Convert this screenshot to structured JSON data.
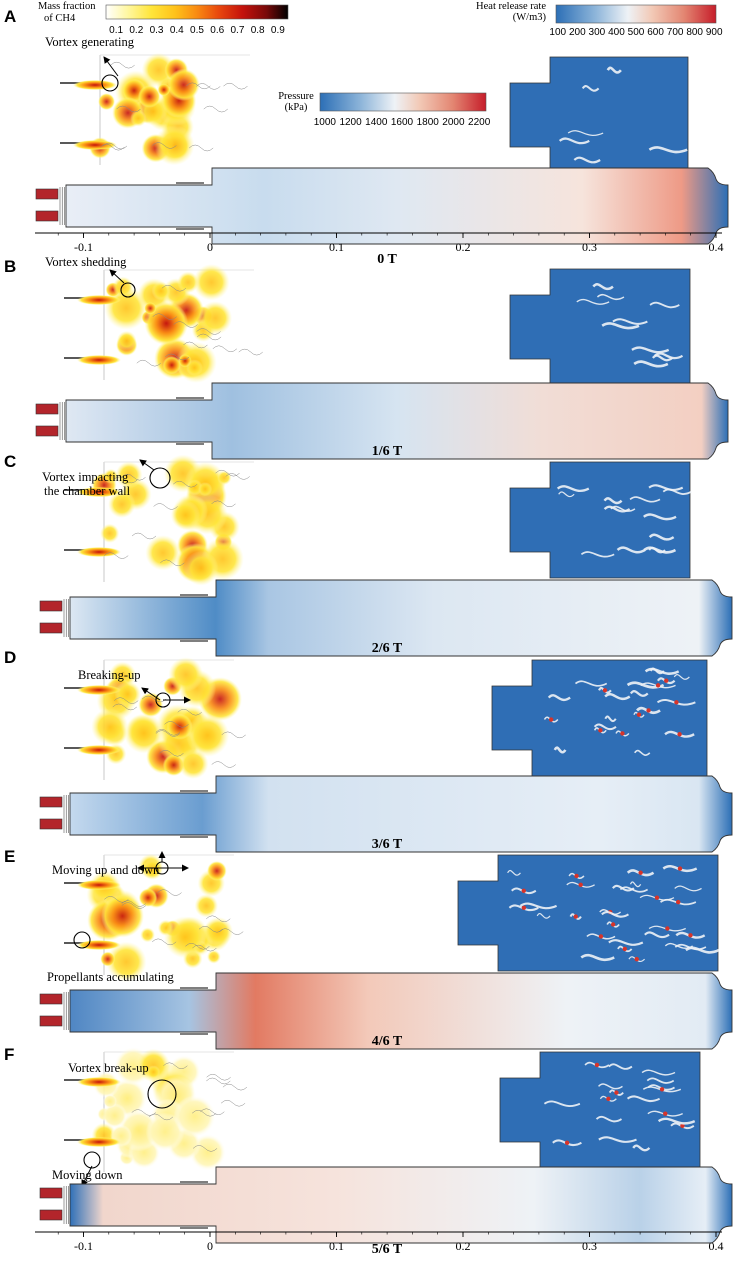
{
  "colorbars": {
    "ch4": {
      "title_lines": [
        "Mass fraction",
        "of CH4"
      ],
      "ticks": [
        "0.1",
        "0.2",
        "0.3",
        "0.4",
        "0.5",
        "0.6",
        "0.7",
        "0.8",
        "0.9"
      ],
      "stops": [
        "#ffffff",
        "#fff7a0",
        "#ffe53a",
        "#ffc21a",
        "#f98a12",
        "#e8470e",
        "#c4120c",
        "#7a0a0a",
        "#000000"
      ]
    },
    "pressure": {
      "title_lines": [
        "Pressure",
        "(kPa)"
      ],
      "ticks": [
        "1000",
        "1200",
        "1400",
        "1600",
        "1800",
        "2000",
        "2200"
      ],
      "stops": [
        "#2c6fb6",
        "#6fa0cf",
        "#b7d0e6",
        "#eef2f6",
        "#f2c9b6",
        "#e38672",
        "#c61d2a"
      ]
    },
    "hrr": {
      "title_lines": [
        "Heat release rate",
        "(W/m3)"
      ],
      "ticks": [
        "100",
        "200",
        "300",
        "400",
        "500",
        "600",
        "700",
        "800",
        "900"
      ],
      "stops": [
        "#2c6fb6",
        "#6fa0cf",
        "#b7d0e6",
        "#eef2f6",
        "#f2c9b6",
        "#e38672",
        "#c61d2a"
      ]
    }
  },
  "axis": {
    "ticks": [
      "-0.1",
      "0",
      "0.1",
      "0.2",
      "0.3",
      "0.4"
    ],
    "values": [
      -0.1,
      0,
      0.1,
      0.2,
      0.3,
      0.4
    ]
  },
  "panels": [
    {
      "letter": "A",
      "time": "0 T",
      "annotations": [
        "Vortex generating"
      ]
    },
    {
      "letter": "B",
      "time": "1/6 T",
      "annotations": [
        "Vortex shedding"
      ]
    },
    {
      "letter": "C",
      "time": "2/6 T",
      "annotations": [
        "Vortex impacting",
        "the chamber wall"
      ]
    },
    {
      "letter": "D",
      "time": "3/6 T",
      "annotations": [
        "Breaking-up"
      ]
    },
    {
      "letter": "E",
      "time": "4/6 T",
      "annotations": [
        "Moving up and down",
        "Propellants accumulating"
      ]
    },
    {
      "letter": "F",
      "time": "5/6 T",
      "annotations": [
        "Vortex break-up",
        "Moving down"
      ]
    }
  ]
}
